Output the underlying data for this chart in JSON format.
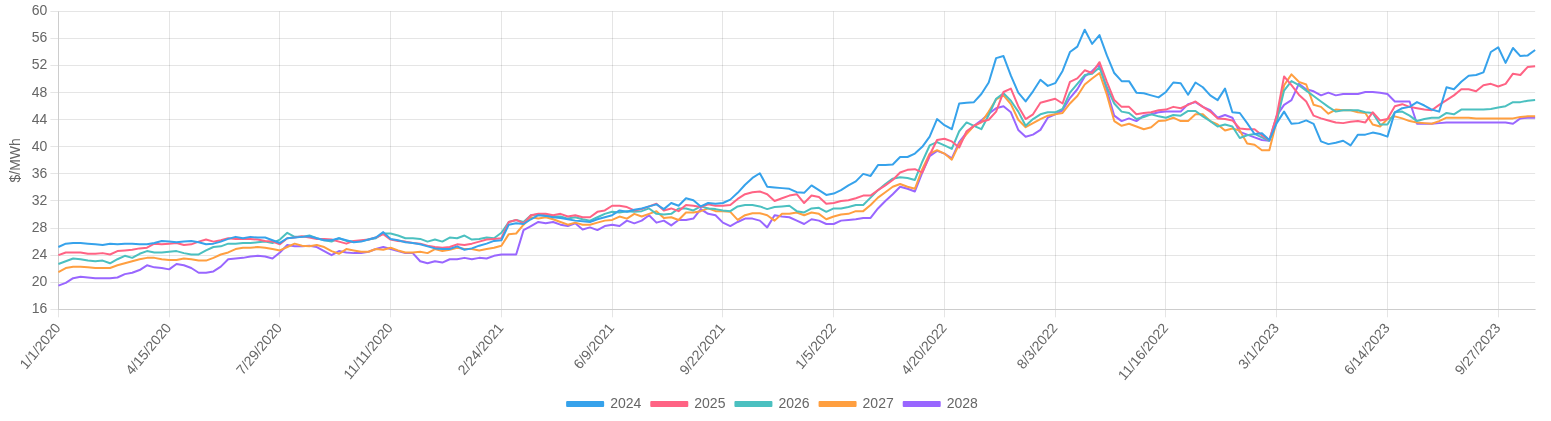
{
  "chart_data": {
    "type": "line",
    "ylabel": "$/MWh",
    "categories": [
      "1/1/2020",
      null,
      null,
      null,
      null,
      null,
      null,
      null,
      null,
      null,
      null,
      null,
      null,
      null,
      null,
      "4/15/2020",
      null,
      null,
      null,
      null,
      null,
      null,
      null,
      null,
      null,
      null,
      null,
      null,
      null,
      null,
      "7/29/2020",
      null,
      null,
      null,
      null,
      null,
      null,
      null,
      null,
      null,
      null,
      null,
      null,
      null,
      null,
      "11/11/2020",
      null,
      null,
      null,
      null,
      null,
      null,
      null,
      null,
      null,
      null,
      null,
      null,
      null,
      null,
      "2/24/2021",
      null,
      null,
      null,
      null,
      null,
      null,
      null,
      null,
      null,
      null,
      null,
      null,
      null,
      null,
      "6/9/2021",
      null,
      null,
      null,
      null,
      null,
      null,
      null,
      null,
      null,
      null,
      null,
      null,
      null,
      null,
      "9/22/2021",
      null,
      null,
      null,
      null,
      null,
      null,
      null,
      null,
      null,
      null,
      null,
      null,
      null,
      null,
      "1/5/2022",
      null,
      null,
      null,
      null,
      null,
      null,
      null,
      null,
      null,
      null,
      null,
      null,
      null,
      null,
      "4/20/2022",
      null,
      null,
      null,
      null,
      null,
      null,
      null,
      null,
      null,
      null,
      null,
      null,
      null,
      null,
      "8/3/2022",
      null,
      null,
      null,
      null,
      null,
      null,
      null,
      null,
      null,
      null,
      null,
      null,
      null,
      null,
      "11/16/2022",
      null,
      null,
      null,
      null,
      null,
      null,
      null,
      null,
      null,
      null,
      null,
      null,
      null,
      null,
      "3/1/2023",
      null,
      null,
      null,
      null,
      null,
      null,
      null,
      null,
      null,
      null,
      null,
      null,
      null,
      null,
      "6/14/2023",
      null,
      null,
      null,
      null,
      null,
      null,
      null,
      null,
      null,
      null,
      null,
      null,
      null,
      null,
      "9/27/2023",
      null,
      null,
      null,
      null,
      null
    ],
    "series": [
      {
        "name": "2024",
        "color": "#36a2eb",
        "values": [
          25.2,
          25.7,
          25.8,
          25.8,
          25.7,
          25.6,
          25.5,
          25.7,
          25.6,
          25.7,
          25.7,
          25.6,
          25.6,
          25.8,
          26.1,
          26.0,
          25.9,
          26.0,
          26.1,
          25.9,
          25.6,
          25.7,
          26.0,
          26.4,
          26.7,
          26.5,
          26.7,
          26.6,
          26.6,
          26.2,
          25.8,
          26.5,
          26.6,
          26.7,
          26.8,
          26.5,
          26.2,
          26.2,
          26.5,
          26.2,
          25.9,
          26.0,
          26.3,
          26.6,
          27.4,
          26.4,
          26.2,
          25.9,
          25.8,
          25.6,
          25.3,
          25.0,
          24.9,
          24.9,
          25.3,
          24.8,
          25.0,
          25.4,
          25.7,
          26.1,
          26.2,
          28.5,
          28.7,
          28.6,
          29.3,
          29.9,
          29.8,
          29.6,
          29.5,
          29.3,
          29.1,
          29.0,
          28.9,
          29.3,
          29.6,
          29.9,
          30.6,
          30.4,
          30.7,
          30.9,
          31.2,
          31.5,
          30.8,
          31.7,
          31.3,
          32.4,
          32.1,
          31.2,
          31.7,
          31.6,
          31.7,
          32.2,
          33.2,
          34.4,
          35.4,
          36.1,
          34.1,
          34.0,
          33.9,
          33.8,
          33.3,
          33.2,
          34.3,
          33.6,
          32.9,
          33.1,
          33.6,
          34.3,
          34.9,
          36.0,
          35.7,
          37.3,
          37.3,
          37.4,
          38.5,
          38.5,
          39.0,
          40.0,
          41.5,
          44.1,
          43.2,
          42.6,
          46.4,
          46.5,
          46.6,
          47.8,
          49.5,
          53.1,
          53.4,
          50.5,
          48.0,
          46.7,
          48.2,
          49.9,
          49.0,
          49.4,
          51.2,
          54.0,
          54.8,
          57.3,
          55.2,
          56.5,
          53.5,
          50.9,
          49.7,
          49.7,
          48.0,
          47.9,
          47.6,
          47.3,
          48.1,
          49.5,
          49.4,
          47.7,
          49.5,
          48.8,
          47.6,
          46.9,
          48.6,
          45.1,
          45.0,
          43.5,
          41.9,
          42.0,
          41.0,
          43.5,
          45.2,
          43.4,
          43.5,
          43.9,
          43.4,
          40.8,
          40.4,
          40.6,
          40.9,
          40.2,
          41.8,
          41.8,
          42.1,
          41.9,
          41.5,
          45.1,
          45.7,
          45.9,
          46.6,
          46.1,
          45.5,
          45.2,
          48.8,
          48.5,
          49.6,
          50.5,
          50.6,
          51.0,
          54.0,
          54.7,
          52.4,
          54.6,
          53.4,
          53.5,
          54.3
        ]
      },
      {
        "name": "2025",
        "color": "#ff6384",
        "values": [
          24.0,
          24.4,
          24.4,
          24.4,
          24.2,
          24.2,
          24.3,
          24.1,
          24.6,
          24.7,
          24.8,
          25.0,
          25.1,
          25.7,
          25.6,
          25.7,
          25.8,
          25.5,
          25.6,
          26.0,
          26.3,
          26.0,
          26.2,
          26.5,
          26.4,
          26.4,
          26.4,
          26.3,
          26.1,
          26.0,
          25.6,
          26.5,
          26.6,
          26.8,
          26.6,
          26.4,
          26.4,
          26.3,
          26.0,
          25.7,
          26.1,
          26.2,
          26.3,
          26.6,
          27.1,
          26.3,
          26.1,
          26.0,
          25.8,
          25.7,
          25.4,
          25.2,
          25.1,
          25.2,
          25.6,
          25.5,
          25.7,
          26.0,
          26.3,
          26.4,
          26.5,
          28.9,
          29.2,
          28.7,
          29.9,
          30.1,
          30.1,
          29.9,
          30.1,
          29.7,
          29.9,
          29.6,
          29.6,
          30.4,
          30.6,
          31.3,
          31.3,
          31.1,
          30.6,
          30.8,
          31.2,
          31.6,
          30.6,
          30.9,
          30.5,
          31.4,
          31.3,
          31.1,
          31.5,
          31.3,
          31.3,
          31.4,
          32.3,
          33.0,
          33.3,
          33.4,
          33.0,
          32.0,
          32.4,
          32.8,
          33.0,
          31.7,
          32.8,
          32.6,
          31.6,
          31.7,
          32.0,
          32.1,
          32.4,
          32.8,
          32.8,
          33.6,
          34.3,
          35.1,
          36.2,
          36.6,
          36.7,
          36.2,
          38.8,
          41.0,
          41.2,
          40.8,
          39.9,
          42.3,
          43.1,
          43.7,
          44.0,
          45.2,
          48.1,
          48.6,
          46.0,
          44.1,
          44.8,
          46.5,
          46.8,
          47.1,
          46.4,
          49.6,
          50.1,
          51.3,
          50.9,
          52.5,
          49.6,
          46.9,
          45.9,
          45.9,
          44.8,
          45.0,
          45.1,
          45.4,
          45.5,
          45.9,
          45.7,
          46.2,
          46.7,
          45.9,
          45.2,
          44.2,
          44.1,
          43.9,
          42.7,
          42.6,
          42.6,
          41.7,
          41.0,
          44.6,
          50.4,
          49.1,
          47.7,
          46.7,
          44.6,
          44.2,
          43.9,
          43.6,
          43.5,
          43.7,
          43.8,
          43.6,
          45.1,
          43.9,
          44.1,
          46.0,
          46.3,
          45.9,
          45.7,
          45.5,
          45.4,
          46.2,
          46.9,
          47.6,
          48.5,
          48.5,
          48.2,
          49.1,
          49.3,
          48.9,
          49.3,
          50.8,
          50.6,
          51.8,
          51.9
        ]
      },
      {
        "name": "2026",
        "color": "#4bc0c0",
        "values": [
          22.7,
          23.1,
          23.5,
          23.4,
          23.2,
          23.1,
          23.2,
          22.8,
          23.4,
          23.9,
          23.6,
          24.2,
          24.6,
          24.4,
          24.4,
          24.5,
          24.6,
          24.3,
          24.1,
          24.1,
          24.7,
          25.2,
          25.3,
          25.7,
          25.7,
          25.8,
          25.8,
          25.9,
          26.0,
          25.8,
          26.3,
          27.3,
          26.7,
          26.7,
          26.9,
          26.5,
          26.2,
          26.0,
          26.5,
          26.1,
          26.0,
          26.1,
          26.3,
          26.5,
          27.2,
          27.2,
          26.9,
          26.5,
          26.5,
          26.4,
          26.0,
          26.3,
          26.0,
          26.6,
          26.5,
          26.9,
          26.3,
          26.4,
          26.6,
          26.5,
          27.3,
          28.9,
          29.2,
          28.9,
          29.9,
          30.0,
          29.9,
          29.7,
          29.7,
          29.4,
          29.6,
          29.3,
          29.1,
          29.6,
          30.1,
          30.4,
          30.3,
          30.5,
          30.4,
          30.5,
          30.9,
          30.1,
          30.0,
          30.1,
          30.9,
          30.9,
          30.6,
          31.2,
          30.9,
          30.8,
          30.6,
          30.5,
          31.2,
          31.4,
          31.4,
          31.2,
          30.8,
          31.1,
          31.2,
          31.3,
          30.5,
          30.3,
          30.9,
          31.0,
          30.4,
          30.9,
          30.9,
          31.1,
          31.4,
          31.4,
          32.5,
          33.6,
          34.5,
          35.3,
          35.5,
          35.4,
          35.1,
          37.8,
          40.2,
          40.7,
          40.2,
          39.7,
          42.3,
          43.6,
          43.1,
          42.6,
          44.7,
          47.1,
          47.9,
          46.8,
          45.2,
          43.1,
          44.1,
          44.8,
          45.1,
          45.1,
          45.6,
          48.0,
          49.3,
          50.6,
          50.8,
          51.7,
          48.8,
          46.4,
          45.2,
          45.0,
          44.1,
          44.4,
          44.8,
          44.5,
          44.3,
          44.7,
          44.6,
          45.3,
          45.3,
          44.5,
          43.8,
          43.0,
          43.3,
          43.0,
          41.3,
          41.7,
          41.9,
          41.4,
          40.9,
          43.8,
          48.3,
          49.7,
          49.1,
          48.3,
          47.5,
          46.7,
          45.9,
          45.2,
          45.4,
          45.4,
          45.4,
          45.1,
          45.0,
          43.3,
          43.3,
          45.1,
          45.2,
          44.6,
          43.8,
          44.1,
          44.3,
          44.3,
          45.0,
          44.8,
          45.5,
          45.5,
          45.5,
          45.5,
          45.6,
          45.8,
          46.0,
          46.6,
          46.6,
          46.8,
          46.9
        ]
      },
      {
        "name": "2027",
        "color": "#ff9f40",
        "values": [
          21.5,
          22.1,
          22.3,
          22.3,
          22.2,
          22.1,
          22.1,
          22.1,
          22.5,
          22.8,
          23.1,
          23.4,
          23.6,
          23.6,
          23.4,
          23.3,
          23.3,
          23.5,
          23.4,
          23.2,
          23.2,
          23.6,
          24.1,
          24.4,
          24.9,
          25.1,
          25.1,
          25.2,
          25.1,
          24.9,
          24.7,
          25.2,
          25.7,
          25.4,
          25.3,
          25.5,
          25.2,
          24.6,
          24.2,
          24.9,
          24.7,
          24.5,
          24.5,
          24.9,
          24.8,
          25.1,
          24.7,
          24.4,
          24.4,
          24.5,
          24.3,
          24.9,
          24.6,
          24.8,
          25.1,
          24.9,
          24.9,
          24.7,
          24.9,
          25.1,
          25.4,
          27.1,
          27.2,
          28.5,
          29.6,
          29.4,
          29.6,
          29.3,
          28.9,
          28.5,
          28.8,
          28.5,
          28.5,
          28.8,
          29.1,
          29.2,
          29.7,
          29.4,
          30.1,
          29.7,
          30.1,
          30.5,
          29.5,
          29.6,
          29.2,
          30.3,
          30.3,
          30.5,
          30.9,
          30.5,
          30.5,
          30.4,
          29.2,
          29.9,
          30.2,
          30.2,
          29.9,
          29.1,
          30.1,
          30.1,
          30.3,
          29.9,
          30.3,
          30.1,
          29.3,
          29.7,
          30.0,
          30.1,
          30.5,
          30.5,
          31.4,
          32.5,
          33.3,
          34.1,
          34.5,
          34.1,
          33.8,
          36.7,
          39.0,
          39.5,
          39.0,
          38.1,
          40.4,
          41.9,
          43.1,
          43.6,
          45.2,
          47.0,
          47.6,
          46.3,
          44.0,
          42.9,
          43.5,
          44.1,
          44.6,
          44.8,
          45.0,
          46.4,
          47.5,
          49.2,
          50.1,
          50.9,
          47.7,
          43.8,
          43.1,
          43.4,
          43.0,
          42.6,
          42.9,
          43.8,
          43.9,
          44.3,
          43.8,
          43.8,
          44.8,
          44.8,
          43.8,
          43.3,
          42.4,
          42.7,
          42.4,
          40.5,
          40.3,
          39.5,
          39.5,
          43.8,
          49.1,
          50.7,
          49.6,
          49.2,
          46.2,
          45.9,
          44.9,
          45.5,
          45.4,
          45.4,
          45.1,
          45.0,
          43.3,
          43.0,
          44.1,
          44.5,
          44.2,
          43.8,
          43.6,
          43.5,
          43.4,
          43.8,
          44.3,
          44.3,
          44.3,
          44.3,
          44.2,
          44.2,
          44.2,
          44.2,
          44.2,
          44.2,
          44.4,
          44.5,
          44.5
        ]
      },
      {
        "name": "2028",
        "color": "#9966ff",
        "values": [
          19.5,
          19.9,
          20.6,
          20.8,
          20.7,
          20.6,
          20.6,
          20.6,
          20.7,
          21.2,
          21.4,
          21.8,
          22.5,
          22.2,
          22.1,
          21.9,
          22.7,
          22.5,
          22.1,
          21.4,
          21.4,
          21.6,
          22.3,
          23.4,
          23.5,
          23.6,
          23.8,
          23.9,
          23.8,
          23.5,
          24.4,
          25.5,
          25.3,
          25.3,
          25.4,
          25.2,
          24.6,
          24.0,
          24.6,
          24.4,
          24.3,
          24.3,
          24.5,
          24.9,
          25.2,
          24.9,
          24.6,
          24.3,
          24.3,
          23.1,
          22.8,
          23.1,
          22.9,
          23.4,
          23.4,
          23.6,
          23.4,
          23.6,
          23.5,
          23.9,
          24.1,
          24.1,
          24.1,
          27.7,
          28.3,
          28.9,
          28.7,
          28.9,
          28.5,
          28.3,
          28.7,
          27.8,
          28.1,
          27.7,
          28.3,
          28.5,
          28.3,
          29.1,
          28.7,
          29.1,
          29.9,
          28.8,
          29.1,
          28.4,
          29.2,
          29.2,
          29.4,
          30.8,
          30.1,
          29.9,
          28.8,
          28.3,
          28.9,
          29.4,
          29.4,
          29.1,
          28.1,
          29.9,
          29.7,
          29.6,
          29.1,
          28.6,
          29.3,
          29.1,
          28.6,
          28.6,
          29.1,
          29.2,
          29.3,
          29.5,
          29.5,
          30.9,
          32.0,
          33.0,
          34.1,
          33.8,
          33.4,
          36.2,
          38.6,
          39.4,
          39.0,
          38.3,
          40.7,
          42.1,
          43.1,
          43.9,
          44.9,
          45.7,
          46.0,
          45.1,
          42.5,
          41.5,
          41.8,
          42.5,
          44.3,
          44.8,
          45.4,
          47.2,
          48.5,
          50.4,
          51.2,
          52.2,
          48.3,
          44.6,
          43.8,
          44.2,
          43.8,
          44.6,
          44.8,
          45.1,
          45.2,
          45.2,
          45.2,
          46.3,
          46.6,
          45.9,
          45.4,
          44.3,
          44.7,
          44.3,
          42.2,
          41.8,
          41.4,
          41.0,
          40.9,
          44.6,
          46.2,
          46.9,
          49.3,
          48.5,
          48.2,
          47.6,
          48.0,
          47.6,
          47.8,
          47.8,
          47.8,
          48.1,
          48.1,
          48.0,
          47.8,
          46.7,
          46.7,
          46.7,
          43.4,
          43.4,
          43.4,
          43.5,
          43.6,
          43.6,
          43.6,
          43.6,
          43.6,
          43.6,
          43.6,
          43.6,
          43.6,
          43.4,
          44.2,
          44.3,
          44.3
        ]
      }
    ],
    "ylim": [
      16,
      60
    ],
    "yticks": [
      16,
      20,
      24,
      28,
      32,
      36,
      40,
      44,
      48,
      52,
      56,
      60
    ],
    "grid": true,
    "legend": "bottom",
    "marker": "none",
    "line_style": "solid"
  }
}
